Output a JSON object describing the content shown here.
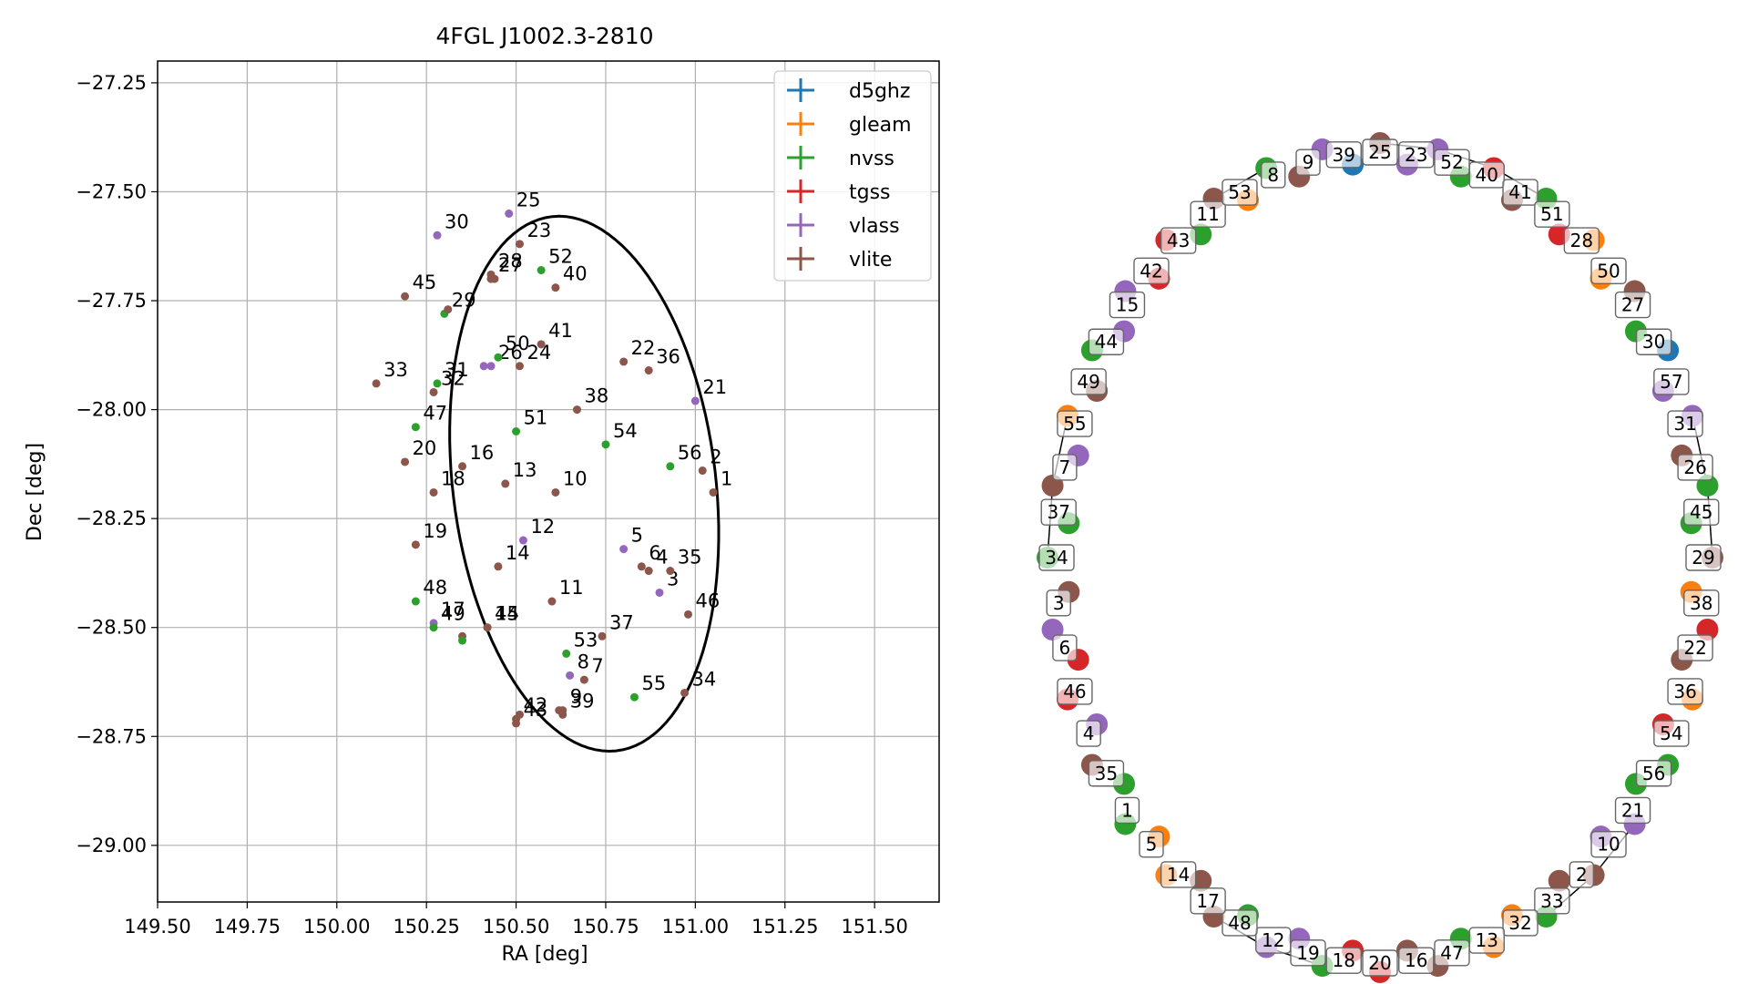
{
  "colors": {
    "d5ghz": "#1f77b4",
    "gleam": "#ff7f0e",
    "nvss": "#2ca02c",
    "tgss": "#d62728",
    "vlass": "#9467bd",
    "vlite": "#8c564b"
  },
  "chart_data": [
    {
      "type": "scatter",
      "title": "4FGL J1002.3-2810",
      "xlabel": "RA [deg]",
      "ylabel": "Dec [deg]",
      "xlim": [
        149.5,
        151.68
      ],
      "ylim": [
        -29.13,
        -27.2
      ],
      "xticks": [
        149.5,
        149.75,
        150.0,
        150.25,
        150.5,
        150.75,
        151.0,
        151.25,
        151.5
      ],
      "xtick_labels": [
        "149.50",
        "149.75",
        "150.00",
        "150.25",
        "150.50",
        "150.75",
        "151.00",
        "151.25",
        "151.50"
      ],
      "yticks": [
        -27.25,
        -27.5,
        -27.75,
        -28.0,
        -28.25,
        -28.5,
        -28.75,
        -29.0
      ],
      "ytick_labels": [
        "−27.25",
        "−27.50",
        "−27.75",
        "−28.00",
        "−28.25",
        "−28.50",
        "−28.75",
        "−29.00"
      ],
      "grid": true,
      "legend_position": "top-right",
      "legend": [
        "d5ghz",
        "gleam",
        "nvss",
        "tgss",
        "vlass",
        "vlite"
      ],
      "ellipse": {
        "ra": 150.69,
        "dec": -28.17,
        "semi_ra": 0.365,
        "semi_dec": 0.62,
        "angle_deg": 10
      },
      "points": [
        {
          "label": "1",
          "ra": 151.05,
          "dec": -28.19,
          "survey": "vlite"
        },
        {
          "label": "2",
          "ra": 151.02,
          "dec": -28.14,
          "survey": "vlite"
        },
        {
          "label": "3",
          "ra": 150.9,
          "dec": -28.42,
          "survey": "vlass"
        },
        {
          "label": "4",
          "ra": 150.87,
          "dec": -28.37,
          "survey": "vlite"
        },
        {
          "label": "5",
          "ra": 150.8,
          "dec": -28.32,
          "survey": "vlass"
        },
        {
          "label": "6",
          "ra": 150.85,
          "dec": -28.36,
          "survey": "vlite"
        },
        {
          "label": "7",
          "ra": 150.69,
          "dec": -28.62,
          "survey": "vlite"
        },
        {
          "label": "8",
          "ra": 150.65,
          "dec": -28.61,
          "survey": "vlass"
        },
        {
          "label": "9",
          "ra": 150.63,
          "dec": -28.69,
          "survey": "vlite"
        },
        {
          "label": "10",
          "ra": 150.61,
          "dec": -28.19,
          "survey": "vlite"
        },
        {
          "label": "11",
          "ra": 150.6,
          "dec": -28.44,
          "survey": "vlite"
        },
        {
          "label": "12",
          "ra": 150.52,
          "dec": -28.3,
          "survey": "vlass"
        },
        {
          "label": "13",
          "ra": 150.47,
          "dec": -28.17,
          "survey": "vlite"
        },
        {
          "label": "14",
          "ra": 150.45,
          "dec": -28.36,
          "survey": "vlite"
        },
        {
          "label": "15",
          "ra": 150.42,
          "dec": -28.5,
          "survey": "vlite"
        },
        {
          "label": "16",
          "ra": 150.35,
          "dec": -28.13,
          "survey": "vlite"
        },
        {
          "label": "17",
          "ra": 150.27,
          "dec": -28.49,
          "survey": "vlass"
        },
        {
          "label": "18",
          "ra": 150.27,
          "dec": -28.19,
          "survey": "vlite"
        },
        {
          "label": "19",
          "ra": 150.22,
          "dec": -28.31,
          "survey": "vlite"
        },
        {
          "label": "20",
          "ra": 150.19,
          "dec": -28.12,
          "survey": "vlite"
        },
        {
          "label": "21",
          "ra": 151.0,
          "dec": -27.98,
          "survey": "vlass"
        },
        {
          "label": "22",
          "ra": 150.8,
          "dec": -27.89,
          "survey": "vlite"
        },
        {
          "label": "23",
          "ra": 150.51,
          "dec": -27.62,
          "survey": "vlite"
        },
        {
          "label": "24",
          "ra": 150.51,
          "dec": -27.9,
          "survey": "vlite"
        },
        {
          "label": "25",
          "ra": 150.48,
          "dec": -27.55,
          "survey": "vlass"
        },
        {
          "label": "26",
          "ra": 150.43,
          "dec": -27.9,
          "survey": "vlass"
        },
        {
          "label": "27",
          "ra": 150.43,
          "dec": -27.7,
          "survey": "vlite"
        },
        {
          "label": "28",
          "ra": 150.43,
          "dec": -27.69,
          "survey": "vlite"
        },
        {
          "label": "29",
          "ra": 150.3,
          "dec": -27.78,
          "survey": "nvss"
        },
        {
          "label": "30",
          "ra": 150.28,
          "dec": -27.6,
          "survey": "vlass"
        },
        {
          "label": "31",
          "ra": 150.28,
          "dec": -27.94,
          "survey": "nvss"
        },
        {
          "label": "32",
          "ra": 150.27,
          "dec": -27.96,
          "survey": "vlite"
        },
        {
          "label": "33",
          "ra": 150.11,
          "dec": -27.94,
          "survey": "vlite"
        },
        {
          "label": "34",
          "ra": 150.97,
          "dec": -28.65,
          "survey": "vlite"
        },
        {
          "label": "35",
          "ra": 150.93,
          "dec": -28.37,
          "survey": "vlite"
        },
        {
          "label": "36",
          "ra": 150.87,
          "dec": -27.91,
          "survey": "vlite"
        },
        {
          "label": "37",
          "ra": 150.74,
          "dec": -28.52,
          "survey": "vlite"
        },
        {
          "label": "38",
          "ra": 150.67,
          "dec": -28.0,
          "survey": "vlite"
        },
        {
          "label": "39",
          "ra": 150.63,
          "dec": -28.7,
          "survey": "vlite"
        },
        {
          "label": "40",
          "ra": 150.61,
          "dec": -27.72,
          "survey": "vlite"
        },
        {
          "label": "41",
          "ra": 150.57,
          "dec": -27.85,
          "survey": "vlite"
        },
        {
          "label": "42",
          "ra": 150.5,
          "dec": -28.71,
          "survey": "vlite"
        },
        {
          "label": "43",
          "ra": 150.5,
          "dec": -28.72,
          "survey": "vlite"
        },
        {
          "label": "44",
          "ra": 150.42,
          "dec": -28.5,
          "survey": "vlite"
        },
        {
          "label": "45",
          "ra": 150.19,
          "dec": -27.74,
          "survey": "vlite"
        },
        {
          "label": "46",
          "ra": 150.98,
          "dec": -28.47,
          "survey": "vlite"
        },
        {
          "label": "47",
          "ra": 150.22,
          "dec": -28.04,
          "survey": "nvss"
        },
        {
          "label": "48",
          "ra": 150.22,
          "dec": -28.44,
          "survey": "nvss"
        },
        {
          "label": "49",
          "ra": 150.27,
          "dec": -28.5,
          "survey": "nvss"
        },
        {
          "label": "50",
          "ra": 150.45,
          "dec": -27.88,
          "survey": "nvss"
        },
        {
          "label": "51",
          "ra": 150.5,
          "dec": -28.05,
          "survey": "nvss"
        },
        {
          "label": "52",
          "ra": 150.57,
          "dec": -27.68,
          "survey": "nvss"
        },
        {
          "label": "53",
          "ra": 150.64,
          "dec": -28.56,
          "survey": "nvss"
        },
        {
          "label": "54",
          "ra": 150.75,
          "dec": -28.08,
          "survey": "nvss"
        },
        {
          "label": "55",
          "ra": 150.83,
          "dec": -28.66,
          "survey": "nvss"
        },
        {
          "label": "56",
          "ra": 150.93,
          "dec": -28.13,
          "survey": "nvss"
        },
        {
          "label": "",
          "ra": 150.35,
          "dec": -28.52,
          "survey": "vlite"
        },
        {
          "label": "",
          "ra": 150.35,
          "dec": -28.53,
          "survey": "nvss"
        },
        {
          "label": "",
          "ra": 150.62,
          "dec": -28.69,
          "survey": "vlite"
        },
        {
          "label": "",
          "ra": 150.51,
          "dec": -28.7,
          "survey": "vlite"
        },
        {
          "label": "",
          "ra": 150.31,
          "dec": -27.77,
          "survey": "vlite"
        },
        {
          "label": "",
          "ra": 150.44,
          "dec": -27.7,
          "survey": "vlite"
        },
        {
          "label": "",
          "ra": 150.41,
          "dec": -27.9,
          "survey": "vlass"
        }
      ]
    },
    {
      "type": "network",
      "nodes": [
        {
          "survey": "vlite"
        },
        {
          "survey": "vlass"
        },
        {
          "survey": "tgss"
        },
        {
          "survey": "nvss"
        },
        {
          "survey": "gleam"
        },
        {
          "survey": "vlite"
        },
        {
          "survey": "d5ghz"
        },
        {
          "survey": "vlass"
        },
        {
          "survey": "nvss"
        },
        {
          "survey": "vlite"
        },
        {
          "survey": "tgss"
        },
        {
          "survey": "gleam"
        },
        {
          "survey": "nvss"
        },
        {
          "survey": "vlass"
        },
        {
          "survey": "vlite"
        },
        {
          "survey": "nvss"
        },
        {
          "survey": "gleam"
        },
        {
          "survey": "vlite"
        },
        {
          "survey": "tgss"
        },
        {
          "survey": "nvss"
        },
        {
          "survey": "vlass"
        },
        {
          "survey": "vlite"
        },
        {
          "survey": "gleam"
        },
        {
          "survey": "nvss"
        },
        {
          "survey": "vlite"
        },
        {
          "survey": "tgss"
        },
        {
          "survey": "vlass"
        },
        {
          "survey": "nvss"
        },
        {
          "survey": "vlite"
        },
        {
          "survey": "gleam"
        },
        {
          "survey": "nvss"
        },
        {
          "survey": "vlass"
        },
        {
          "survey": "tgss"
        },
        {
          "survey": "vlite"
        },
        {
          "survey": "nvss"
        },
        {
          "survey": "vlass"
        }
      ],
      "labeled_nodes": [
        {
          "label": "25"
        },
        {
          "label": "23"
        },
        {
          "label": "52"
        },
        {
          "label": "40"
        },
        {
          "label": "41"
        },
        {
          "label": "51"
        },
        {
          "label": "28"
        },
        {
          "label": "50"
        },
        {
          "label": "27"
        },
        {
          "label": "30"
        },
        {
          "label": "57"
        },
        {
          "label": "31"
        },
        {
          "label": "26"
        },
        {
          "label": "45"
        },
        {
          "label": "29"
        },
        {
          "label": "38"
        },
        {
          "label": "22"
        },
        {
          "label": "36"
        },
        {
          "label": "54"
        },
        {
          "label": "56"
        },
        {
          "label": "21"
        },
        {
          "label": "10"
        },
        {
          "label": "2"
        },
        {
          "label": "33"
        },
        {
          "label": "32"
        },
        {
          "label": "13"
        },
        {
          "label": "47"
        },
        {
          "label": "16"
        },
        {
          "label": "20"
        },
        {
          "label": "18"
        },
        {
          "label": "19"
        },
        {
          "label": "12"
        },
        {
          "label": "48"
        },
        {
          "label": "17"
        },
        {
          "label": "14"
        },
        {
          "label": "5"
        },
        {
          "label": "1"
        },
        {
          "label": "35"
        },
        {
          "label": "4"
        },
        {
          "label": "46"
        },
        {
          "label": "6"
        },
        {
          "label": "3"
        },
        {
          "label": "34"
        },
        {
          "label": "37"
        },
        {
          "label": "7"
        },
        {
          "label": "55"
        },
        {
          "label": "49"
        },
        {
          "label": "44"
        },
        {
          "label": "15"
        },
        {
          "label": "42"
        },
        {
          "label": "43"
        },
        {
          "label": "11"
        },
        {
          "label": "53"
        },
        {
          "label": "8"
        },
        {
          "label": "9"
        },
        {
          "label": "39"
        }
      ]
    }
  ]
}
